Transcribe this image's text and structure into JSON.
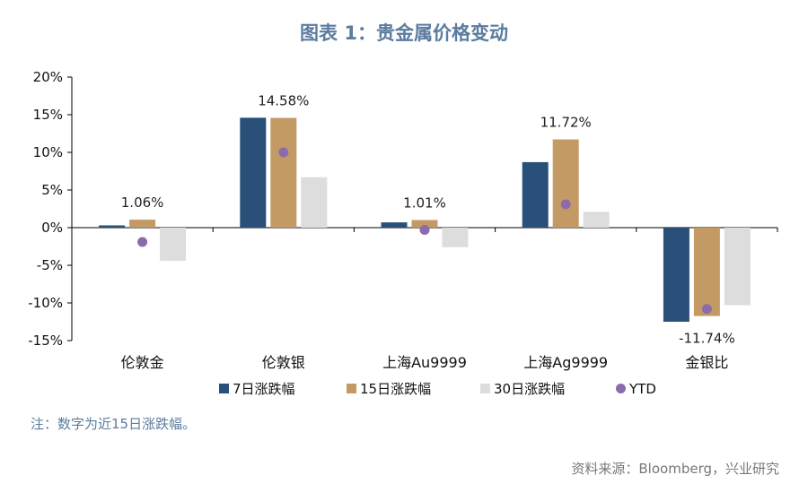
{
  "title": "图表 1：贵金属价格变动",
  "note": "注：数字为近15日涨跌幅。",
  "source": "资料来源：Bloomberg，兴业研究",
  "colors": {
    "title": "#5b7c9e",
    "note": "#5b7c9e",
    "source": "#777777",
    "axis": "#000000"
  },
  "chart_data": {
    "type": "bar",
    "title": "图表 1：贵金属价格变动",
    "categories": [
      "伦敦金",
      "伦敦银",
      "上海Au9999",
      "上海Ag9999",
      "金银比"
    ],
    "ylim": [
      -15,
      20
    ],
    "yticks": [
      20,
      15,
      10,
      5,
      0,
      -5,
      -10,
      -15
    ],
    "ytick_labels": [
      "20%",
      "15%",
      "10%",
      "5%",
      "0%",
      "-5%",
      "-10%",
      "-15%"
    ],
    "legend_position": "bottom",
    "series": [
      {
        "name": "7日涨跌幅",
        "type": "bar",
        "color": "#2a4f78",
        "values": [
          0.3,
          14.6,
          0.7,
          8.7,
          -12.5
        ]
      },
      {
        "name": "15日涨跌幅",
        "type": "bar",
        "color": "#c49a64",
        "values": [
          1.06,
          14.58,
          1.01,
          11.72,
          -11.74
        ]
      },
      {
        "name": "30日涨跌幅",
        "type": "bar",
        "color": "#dddddd",
        "values": [
          -4.4,
          6.7,
          -2.6,
          2.1,
          -10.3
        ]
      },
      {
        "name": "YTD",
        "type": "scatter",
        "color": "#8b6bab",
        "values": [
          -1.9,
          10.0,
          -0.3,
          3.1,
          -10.8
        ]
      }
    ],
    "data_labels": [
      "1.06%",
      "14.58%",
      "1.01%",
      "11.72%",
      "-11.74%"
    ]
  }
}
